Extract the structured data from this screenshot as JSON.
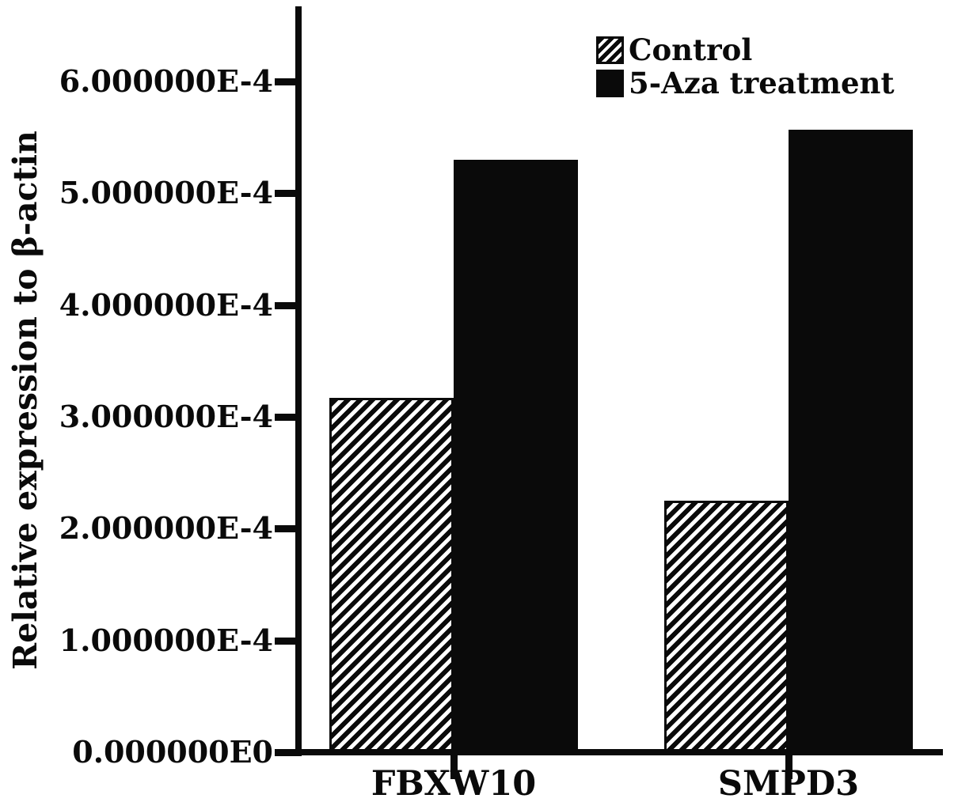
{
  "chart_data": {
    "type": "bar",
    "title": "",
    "xlabel": "",
    "ylabel": "Relative expression to β-actin",
    "categories": [
      "FBXW10",
      "SMPD3"
    ],
    "series": [
      {
        "name": "Control",
        "style": "hatched",
        "values": [
          0.000317,
          0.000225
        ]
      },
      {
        "name": "5-Aza treatment",
        "style": "solid",
        "values": [
          0.00053,
          0.000557
        ]
      }
    ],
    "y_axis": {
      "min": 0,
      "max": 0.0006,
      "tick_values": [
        0,
        0.0001,
        0.0002,
        0.0003,
        0.0004,
        0.0005,
        0.0006
      ],
      "tick_labels": [
        "0.000000E0",
        "1.000000E-4",
        "2.000000E-4",
        "3.000000E-4",
        "4.000000E-4",
        "5.000000E-4",
        "6.000000E-4"
      ]
    },
    "legend": {
      "position": "top-right",
      "entries": [
        "Control",
        "5-Aza treatment"
      ]
    },
    "grid": false,
    "colors": {
      "bar_fill": "#0a0a0a",
      "background": "#ffffff"
    }
  }
}
